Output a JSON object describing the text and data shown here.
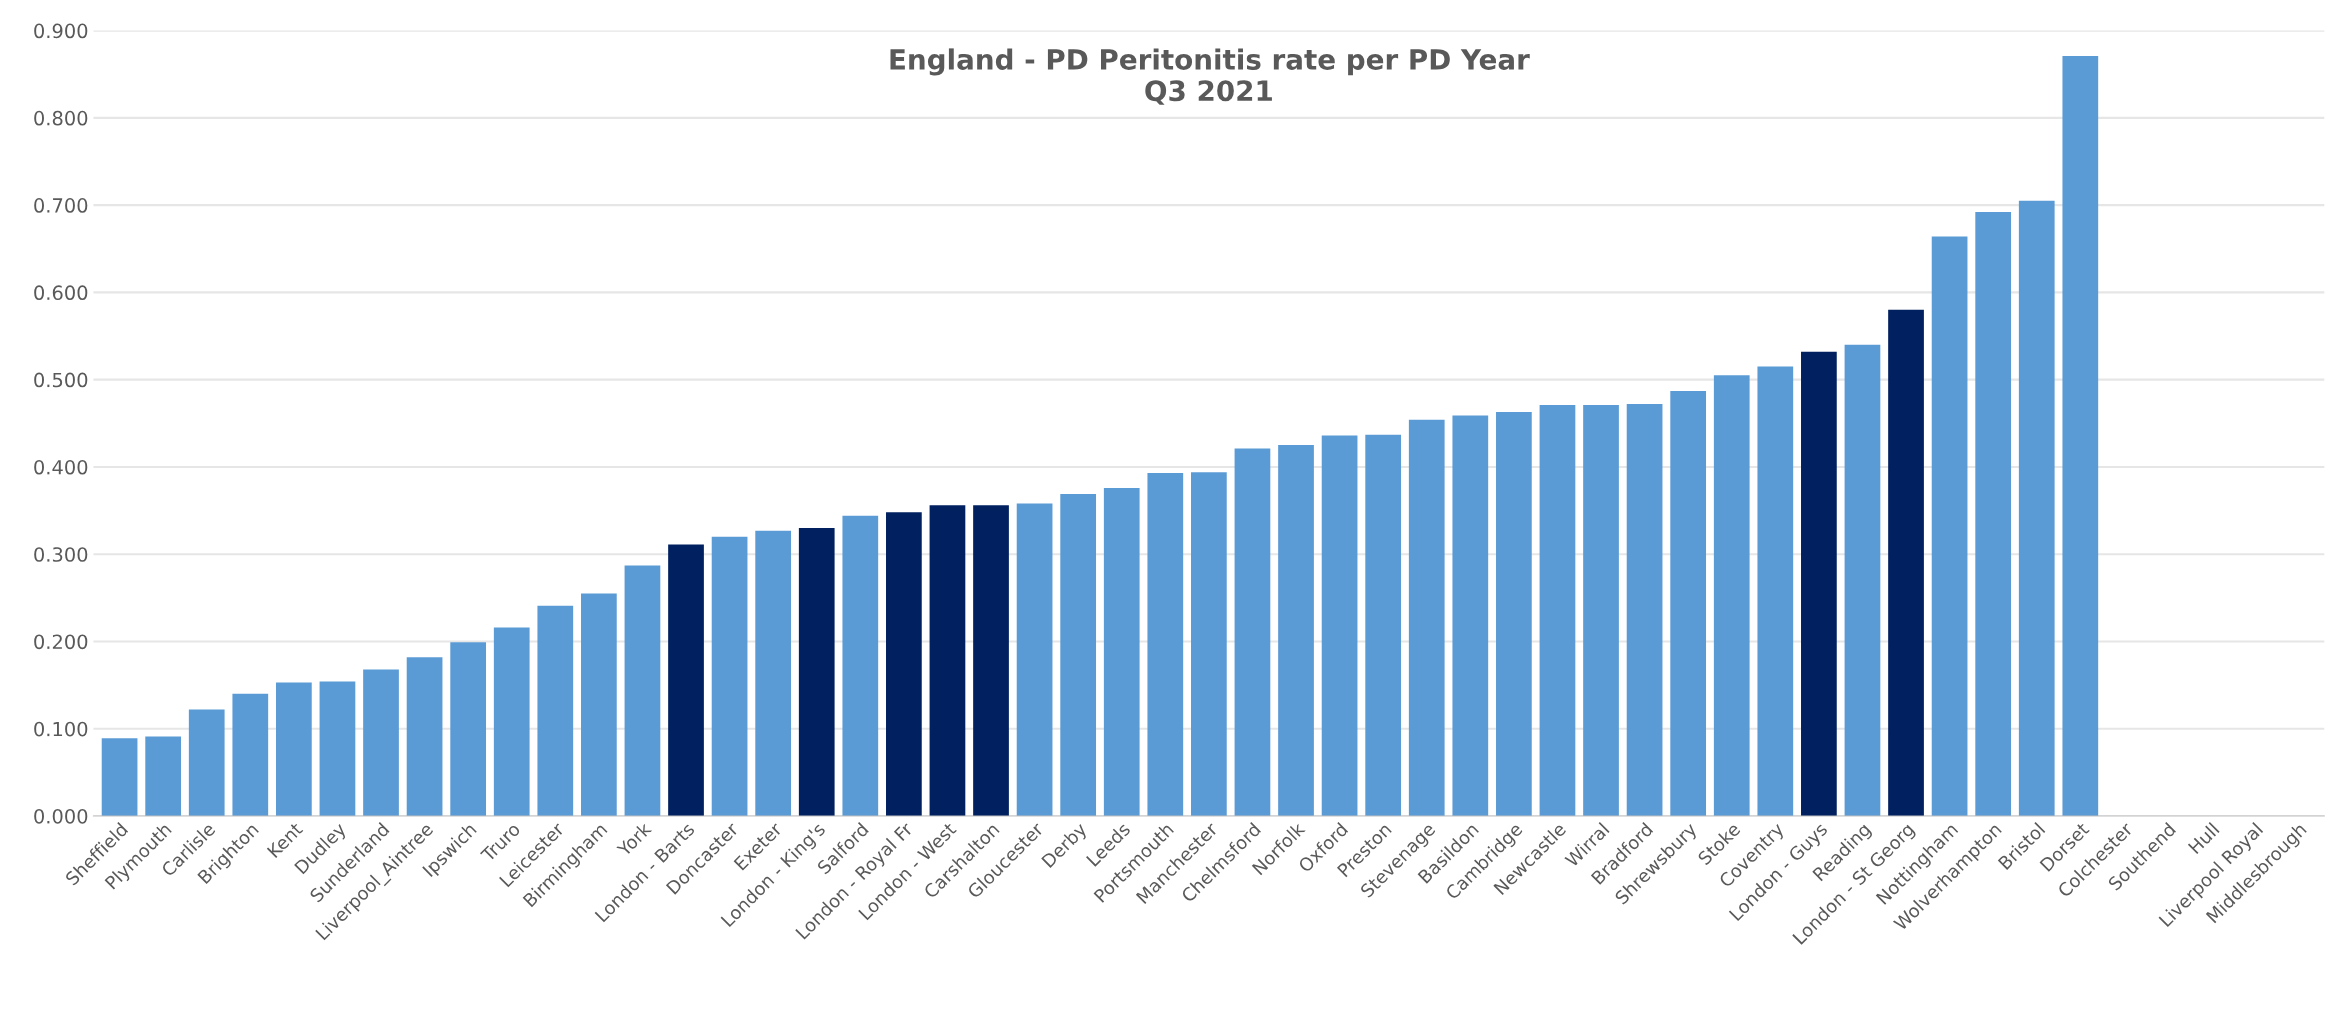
{
  "chart_data": {
    "type": "bar",
    "title": "England - PD Peritonitis rate per PD Year\nQ3 2021",
    "categories": [
      "Sheffield",
      "Plymouth",
      "Carlisle",
      "Brighton",
      "Kent",
      "Dudley",
      "Sunderland",
      "Liverpool_Aintree",
      "Ipswich",
      "Truro",
      "Leicester",
      "Birmingham",
      "York",
      "London - Barts",
      "Doncaster",
      "Exeter",
      "London - King's",
      "Salford",
      "London - Royal Fr",
      "London - West",
      "Carshalton",
      "Gloucester",
      "Derby",
      "Leeds",
      "Portsmouth",
      "Manchester",
      "Chelmsford",
      "Norfolk",
      "Oxford",
      "Preston",
      "Stevenage",
      "Basildon",
      "Cambridge",
      "Newcastle",
      "Wirral",
      "Bradford",
      "Shrewsbury",
      "Stoke",
      "Coventry",
      "London - Guys",
      "Reading",
      "London - St Georg",
      "Nottingham",
      "Wolverhampton",
      "Bristol",
      "Dorset",
      "Colchester",
      "Southend",
      "Hull",
      "Liverpool Royal",
      "Middlesbrough"
    ],
    "values": [
      0.089,
      0.091,
      0.122,
      0.14,
      0.153,
      0.154,
      0.168,
      0.182,
      0.199,
      0.216,
      0.241,
      0.255,
      0.287,
      0.311,
      0.32,
      0.327,
      0.33,
      0.344,
      0.348,
      0.356,
      0.356,
      0.358,
      0.369,
      0.376,
      0.393,
      0.394,
      0.421,
      0.425,
      0.436,
      0.437,
      0.454,
      0.459,
      0.463,
      0.471,
      0.471,
      0.472,
      0.487,
      0.505,
      0.515,
      0.532,
      0.54,
      0.58,
      0.664,
      0.692,
      0.705,
      0.871,
      null,
      null,
      null,
      null,
      null
    ],
    "colors": [
      "#5b9bd5",
      "#5b9bd5",
      "#5b9bd5",
      "#5b9bd5",
      "#5b9bd5",
      "#5b9bd5",
      "#5b9bd5",
      "#5b9bd5",
      "#5b9bd5",
      "#5b9bd5",
      "#5b9bd5",
      "#5b9bd5",
      "#5b9bd5",
      "#002060",
      "#5b9bd5",
      "#5b9bd5",
      "#002060",
      "#5b9bd5",
      "#002060",
      "#002060",
      "#002060",
      "#5b9bd5",
      "#5b9bd5",
      "#5b9bd5",
      "#5b9bd5",
      "#5b9bd5",
      "#5b9bd5",
      "#5b9bd5",
      "#5b9bd5",
      "#5b9bd5",
      "#5b9bd5",
      "#5b9bd5",
      "#5b9bd5",
      "#5b9bd5",
      "#5b9bd5",
      "#5b9bd5",
      "#5b9bd5",
      "#5b9bd5",
      "#5b9bd5",
      "#002060",
      "#5b9bd5",
      "#002060",
      "#5b9bd5",
      "#5b9bd5",
      "#5b9bd5",
      "#5b9bd5",
      "#5b9bd5",
      "#5b9bd5",
      "#5b9bd5",
      "#5b9bd5",
      "#5b9bd5"
    ],
    "ylim": [
      0,
      0.9
    ],
    "yticks": [
      {
        "value": 0,
        "label": "0.000"
      },
      {
        "value": 0.1,
        "label": "0.100"
      },
      {
        "value": 0.2,
        "label": "0.200"
      },
      {
        "value": 0.3,
        "label": "0.300"
      },
      {
        "value": 0.4,
        "label": "0.400"
      },
      {
        "value": 0.5,
        "label": "0.500"
      },
      {
        "value": 0.6,
        "label": "0.600"
      },
      {
        "value": 0.7,
        "label": "0.700"
      },
      {
        "value": 0.8,
        "label": "0.800"
      },
      {
        "value": 0.9,
        "label": "0.900"
      }
    ],
    "grid": "y",
    "legend": false
  }
}
